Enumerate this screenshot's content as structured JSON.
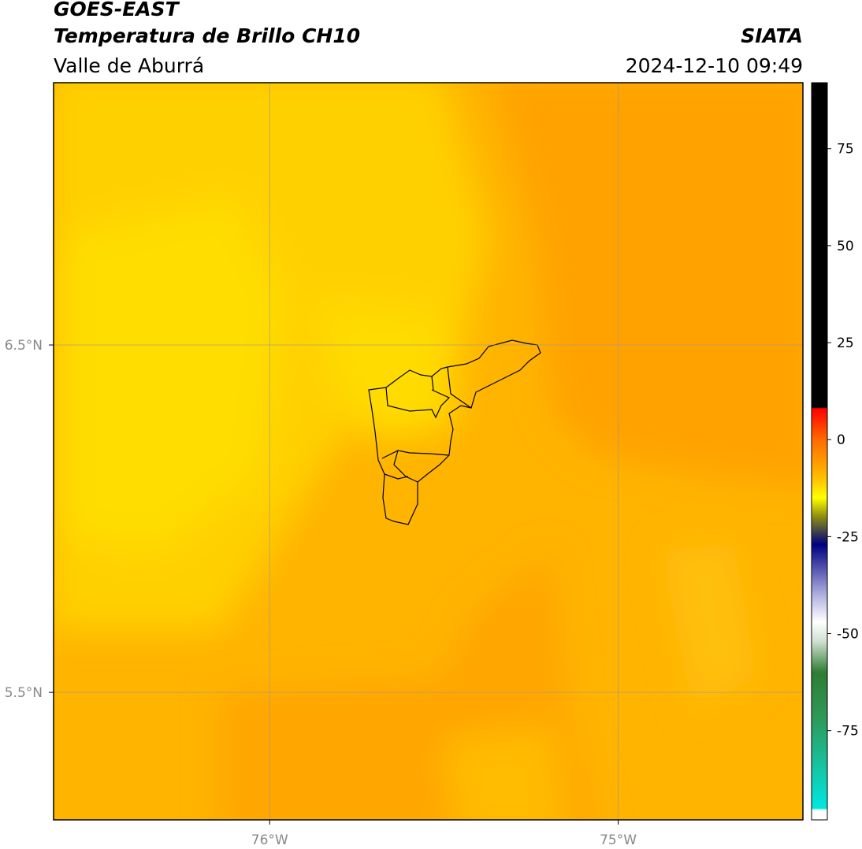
{
  "chart_data": {
    "type": "map",
    "title": "GOES-EAST",
    "subtitle": "Temperatura de Brillo CH10",
    "region": "Valle de Aburrá",
    "source": "SIATA",
    "datetime": "2024-12-10 09:49",
    "xlim": [
      -76.62,
      -74.47
    ],
    "xticks": [
      {
        "value": -76,
        "label": "76°W"
      },
      {
        "value": -75,
        "label": "75°W"
      }
    ],
    "ylim": [
      5.133,
      7.255
    ],
    "yticks": [
      {
        "value": 5.5,
        "label": "5.5°N"
      },
      {
        "value": 6.5,
        "label": "6.5°N"
      }
    ],
    "grid": true,
    "colorbar": {
      "lim": [
        -98,
        92
      ],
      "ticks": [
        75,
        50,
        25,
        0,
        -25,
        -50,
        -75
      ],
      "stops": [
        {
          "value": 92,
          "color": "#000000"
        },
        {
          "value": 8.3,
          "color": "#000000"
        },
        {
          "value": 8,
          "color": "#ff0000"
        },
        {
          "value": 0,
          "color": "#ff6a00"
        },
        {
          "value": -10,
          "color": "#ffc000"
        },
        {
          "value": -15,
          "color": "#ffff00"
        },
        {
          "value": -20,
          "color": "#8a8a10"
        },
        {
          "value": -27,
          "color": "#000080"
        },
        {
          "value": -40,
          "color": "#b0b0e0"
        },
        {
          "value": -47,
          "color": "#ffffff"
        },
        {
          "value": -52,
          "color": "#d0e0d0"
        },
        {
          "value": -60,
          "color": "#2e7d32"
        },
        {
          "value": -72,
          "color": "#2e9a5a"
        },
        {
          "value": -95,
          "color": "#00e8e0"
        },
        {
          "value": -95.5,
          "color": "#ffffff"
        },
        {
          "value": -98,
          "color": "#ffffff"
        }
      ]
    }
  }
}
